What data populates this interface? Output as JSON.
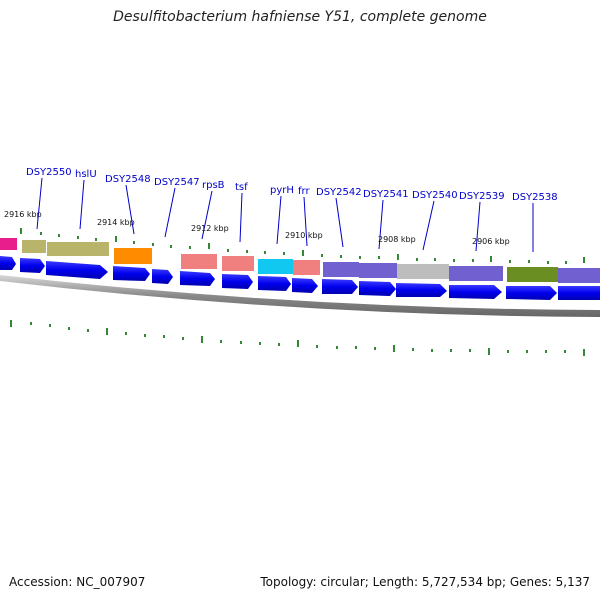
{
  "title": "Desulfitobacterium hafniense Y51, complete genome",
  "footer": {
    "accession": "Accession: NC_007907",
    "topology": "Topology: circular; Length: 5,727,534 bp; Genes: 5,137"
  },
  "gene_labels": [
    "DSY2550",
    "hslU",
    "DSY2548",
    "DSY2547",
    "rpsB",
    "tsf",
    "pyrH",
    "frr",
    "DSY2542",
    "DSY2541",
    "DSY2540",
    "DSY2539",
    "DSY2538"
  ],
  "kbp_ticks": [
    "2916 kbp",
    "2914 kbp",
    "2912 kbp",
    "2910 kbp",
    "2908 kbp",
    "2906 kbp"
  ],
  "colors": {
    "strand_arrow": "#0000ee",
    "backbone": "#888888",
    "tick_marks": "#338833",
    "label_text": "#0000cc"
  }
}
